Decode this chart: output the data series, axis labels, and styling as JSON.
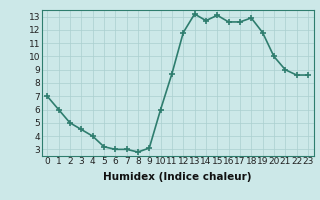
{
  "x": [
    0,
    1,
    2,
    3,
    4,
    5,
    6,
    7,
    8,
    9,
    10,
    11,
    12,
    13,
    14,
    15,
    16,
    17,
    18,
    19,
    20,
    21,
    22,
    23
  ],
  "y": [
    7.0,
    6.0,
    5.0,
    4.5,
    4.0,
    3.2,
    3.0,
    3.0,
    2.8,
    3.1,
    6.0,
    8.7,
    11.8,
    13.2,
    12.7,
    13.1,
    12.6,
    12.6,
    12.9,
    11.8,
    10.0,
    9.0,
    8.6,
    8.6
  ],
  "xlabel": "Humidex (Indice chaleur)",
  "line_color": "#2e7d6e",
  "marker_color": "#2e7d6e",
  "bg_color": "#cce8e8",
  "grid_color": "#aacfcf",
  "ylim": [
    2.5,
    13.5
  ],
  "xlim": [
    -0.5,
    23.5
  ],
  "yticks": [
    3,
    4,
    5,
    6,
    7,
    8,
    9,
    10,
    11,
    12,
    13
  ],
  "xticks": [
    0,
    1,
    2,
    3,
    4,
    5,
    6,
    7,
    8,
    9,
    10,
    11,
    12,
    13,
    14,
    15,
    16,
    17,
    18,
    19,
    20,
    21,
    22,
    23
  ],
  "tick_fontsize": 6.5,
  "xlabel_fontsize": 7.5,
  "marker_size": 4,
  "line_width": 1.2
}
